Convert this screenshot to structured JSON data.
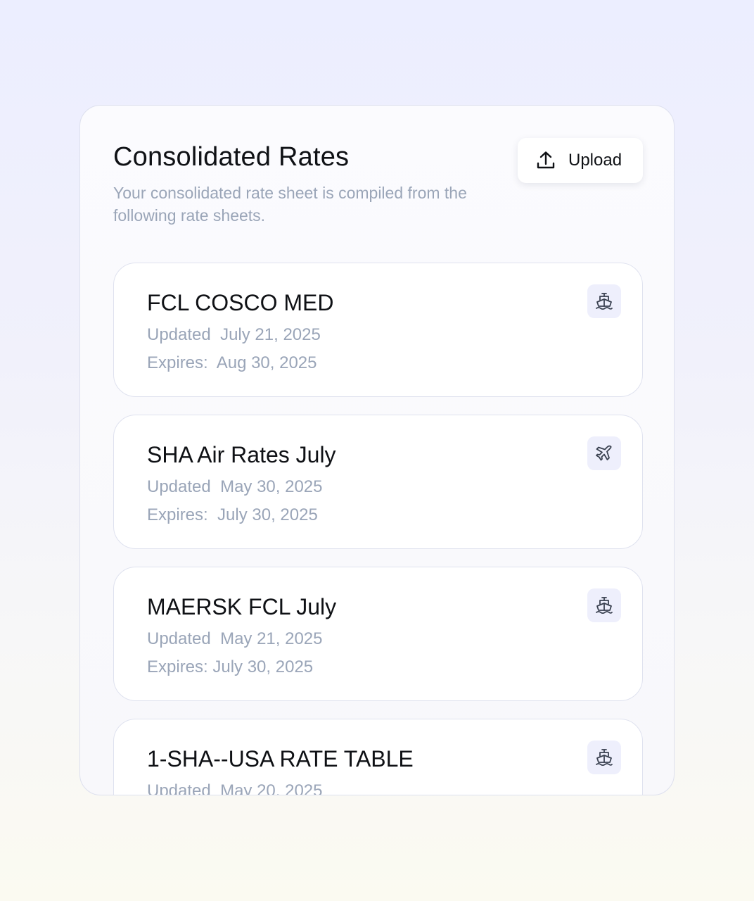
{
  "header": {
    "title": "Consolidated Rates",
    "subtitle": "Your consolidated rate sheet is compiled from the following rate sheets.",
    "upload_label": "Upload"
  },
  "rate_sheets": [
    {
      "title": "FCL COSCO MED",
      "updated": "Updated  July 21, 2025",
      "expires": "Expires:  Aug 30, 2025",
      "mode_icon": "ship-icon"
    },
    {
      "title": "SHA Air Rates July",
      "updated": "Updated  May 30, 2025",
      "expires": "Expires:  July 30, 2025",
      "mode_icon": "plane-icon"
    },
    {
      "title": "MAERSK FCL July",
      "updated": "Updated  May 21, 2025",
      "expires": "Expires: July 30, 2025",
      "mode_icon": "ship-icon"
    },
    {
      "title": "1-SHA--USA RATE TABLE",
      "updated": "Updated  May 20, 2025",
      "expires": "",
      "mode_icon": "ship-icon"
    }
  ],
  "colors": {
    "title_text": "#0f1115",
    "muted_text": "#9aa5b8",
    "badge_bg": "#eeeffc",
    "card_border": "#dfe2ef"
  }
}
